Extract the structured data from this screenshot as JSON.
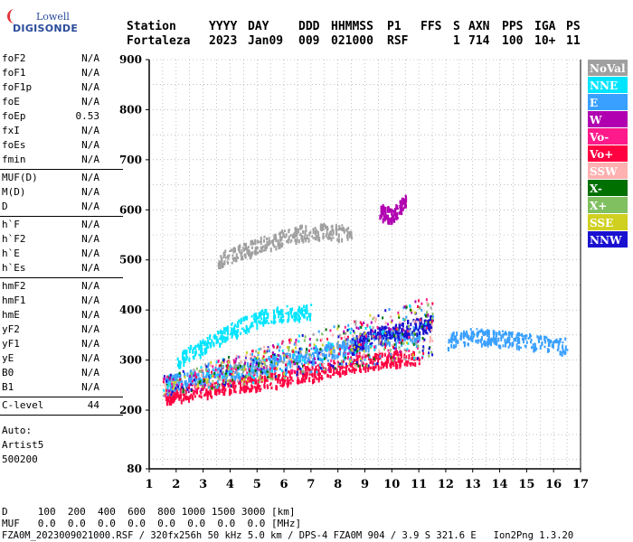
{
  "logo": {
    "line1": "Lowell",
    "line2": "DIGISONDE"
  },
  "header": {
    "labels": [
      "Station",
      "YYYY",
      "DAY",
      "DDD",
      "HHMMSS",
      "P1",
      "FFS",
      "S",
      "AXN",
      "PPS",
      "IGA",
      "PS"
    ],
    "values": [
      "Fortaleza",
      "2023",
      "Jan09",
      "009",
      "021000",
      "RSF",
      "",
      "1",
      "714",
      "100",
      "10+",
      "11"
    ]
  },
  "params": {
    "group1": [
      {
        "name": "foF2",
        "value": "N/A"
      },
      {
        "name": "foF1",
        "value": "N/A"
      },
      {
        "name": "foF1p",
        "value": "N/A"
      },
      {
        "name": "foE",
        "value": "N/A"
      },
      {
        "name": "foEp",
        "value": "0.53"
      },
      {
        "name": "fxI",
        "value": "N/A"
      },
      {
        "name": "foEs",
        "value": "N/A"
      },
      {
        "name": "fmin",
        "value": "N/A"
      }
    ],
    "group2": [
      {
        "name": "MUF(D)",
        "value": "N/A"
      },
      {
        "name": "M(D)",
        "value": "N/A"
      },
      {
        "name": "D",
        "value": "N/A"
      }
    ],
    "group3": [
      {
        "name": "h`F",
        "value": "N/A"
      },
      {
        "name": "h`F2",
        "value": "N/A"
      },
      {
        "name": "h`E",
        "value": "N/A"
      },
      {
        "name": "h`Es",
        "value": "N/A"
      }
    ],
    "group4": [
      {
        "name": "hmF2",
        "value": "N/A"
      },
      {
        "name": "hmF1",
        "value": "N/A"
      },
      {
        "name": "hmE",
        "value": "N/A"
      },
      {
        "name": "yF2",
        "value": "N/A"
      },
      {
        "name": "yF1",
        "value": "N/A"
      },
      {
        "name": "yE",
        "value": "N/A"
      },
      {
        "name": "B0",
        "value": "N/A"
      },
      {
        "name": "B1",
        "value": "N/A"
      }
    ],
    "clevel": {
      "name": "C-level",
      "value": "44"
    },
    "auto": [
      "Auto:",
      "Artist5",
      "500200"
    ]
  },
  "bottom": {
    "d_row": "D     100  200  400  600  800 1000 1500 3000 [km]",
    "muf_row": "MUF   0.0  0.0  0.0  0.0  0.0  0.0  0.0  0.0 [MHz]",
    "footer": "FZA0M_2023009021000.RSF / 320fx256h 50 kHz 5.0 km / DPS-4 FZA0M 904 / 3.9 S 321.6 E   Ion2Png 1.3.20"
  },
  "chart_data": {
    "type": "scatter",
    "x_ticks": [
      1,
      2,
      3,
      4,
      5,
      6,
      7,
      8,
      9,
      10,
      11,
      12,
      13,
      14,
      15,
      16,
      17
    ],
    "y_ticks": [
      80,
      200,
      300,
      400,
      500,
      600,
      700,
      800,
      900
    ],
    "xlim": [
      1,
      17
    ],
    "ylim": [
      80,
      900
    ],
    "grid": true,
    "legend_position": "right",
    "legend": [
      {
        "label": "NoVal",
        "color": "#a0a0a0"
      },
      {
        "label": "NNE",
        "color": "#00e5ff"
      },
      {
        "label": "E",
        "color": "#3aa0ff"
      },
      {
        "label": "W",
        "color": "#b000b0"
      },
      {
        "label": "Vo-",
        "color": "#ff1a8c"
      },
      {
        "label": "Vo+",
        "color": "#ff0040"
      },
      {
        "label": "SSW",
        "color": "#ffb0b0"
      },
      {
        "label": "X-",
        "color": "#007000"
      },
      {
        "label": "X+",
        "color": "#80c060"
      },
      {
        "label": "SSE",
        "color": "#d0d020"
      },
      {
        "label": "NNW",
        "color": "#1a10d0"
      }
    ],
    "traces": [
      {
        "name": "F-layer o-trace lower",
        "color": "#ff0040",
        "points": [
          [
            1.6,
            230
          ],
          [
            2,
            235
          ],
          [
            3,
            242
          ],
          [
            4,
            250
          ],
          [
            5,
            258
          ],
          [
            6,
            266
          ],
          [
            7,
            276
          ],
          [
            8,
            288
          ],
          [
            9,
            298
          ],
          [
            10,
            305
          ],
          [
            11,
            310
          ]
        ]
      },
      {
        "name": "F-layer o-trace upper",
        "color": "#3aa0ff",
        "points": [
          [
            1.6,
            250
          ],
          [
            2,
            260
          ],
          [
            3,
            268
          ],
          [
            4,
            278
          ],
          [
            5,
            290
          ],
          [
            6,
            300
          ],
          [
            7,
            312
          ],
          [
            8,
            325
          ],
          [
            9,
            338
          ],
          [
            10,
            348
          ],
          [
            11,
            355
          ]
        ]
      },
      {
        "name": "F-layer x-trace",
        "color": "#1a10d0",
        "points": [
          [
            8.5,
            330
          ],
          [
            9,
            345
          ],
          [
            10,
            360
          ],
          [
            11,
            370
          ],
          [
            11.5,
            380
          ]
        ]
      },
      {
        "name": "Oblique cyan",
        "color": "#00e5ff",
        "points": [
          [
            2,
            300
          ],
          [
            3,
            330
          ],
          [
            4,
            360
          ],
          [
            5,
            385
          ],
          [
            6,
            395
          ],
          [
            7,
            400
          ]
        ]
      },
      {
        "name": "Second hop",
        "color": "#a0a0a0",
        "points": [
          [
            3.5,
            500
          ],
          [
            4.5,
            520
          ],
          [
            5.5,
            540
          ],
          [
            6.5,
            555
          ],
          [
            7.5,
            560
          ],
          [
            8.5,
            555
          ]
        ]
      },
      {
        "name": "Spread echoes",
        "color": "#3aa0ff",
        "points": [
          [
            12,
            340
          ],
          [
            13,
            350
          ],
          [
            14,
            345
          ],
          [
            15,
            340
          ],
          [
            16.5,
            330
          ]
        ]
      },
      {
        "name": "Noise W",
        "color": "#b000b0",
        "points": [
          [
            9.5,
            600
          ],
          [
            10,
            590
          ],
          [
            10.5,
            620
          ]
        ]
      }
    ]
  }
}
